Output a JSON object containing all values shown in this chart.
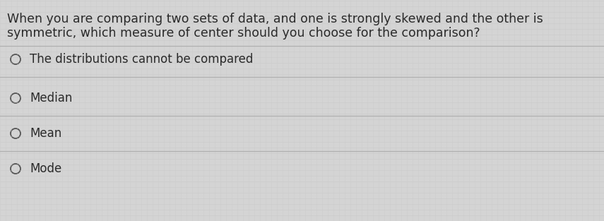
{
  "question_line1": "When you are comparing two sets of data, and one is strongly skewed and the other is",
  "question_line2": "symmetric, which measure of center should you choose for the comparison?",
  "options": [
    "The distributions cannot be compared",
    "Median",
    "Mean",
    "Mode"
  ],
  "bg_color": "#d4d4d4",
  "text_color": "#2a2a2a",
  "question_fontsize": 12.5,
  "option_fontsize": 12.0,
  "circle_color": "#555555",
  "line_color": "#b0b0b0",
  "grid_color_h": "#c0c0c0",
  "grid_color_v": "#c8c8c8"
}
